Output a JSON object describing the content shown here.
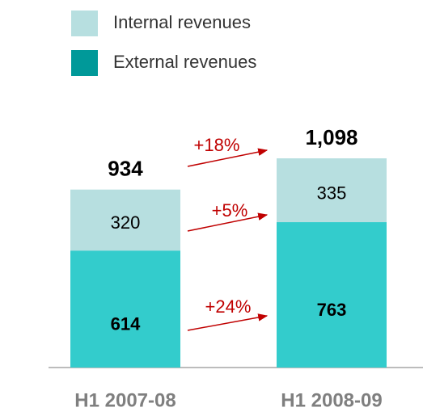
{
  "chart_data": {
    "type": "stacked_bar",
    "categories": [
      "H1 2007-08",
      "H1 2008-09"
    ],
    "series": [
      {
        "name": "External revenues",
        "color": "#33cccc",
        "legend_color": "#009999",
        "values": [
          614,
          763
        ]
      },
      {
        "name": "Internal revenues",
        "color": "#b7dfe0",
        "legend_color": "#b7dfe0",
        "values": [
          320,
          335
        ]
      }
    ],
    "totals": {
      "values": [
        934,
        1098
      ],
      "value_labels": [
        "934",
        "1,098"
      ]
    },
    "annotations": [
      "+18%",
      "+5%",
      "+24%"
    ]
  }
}
